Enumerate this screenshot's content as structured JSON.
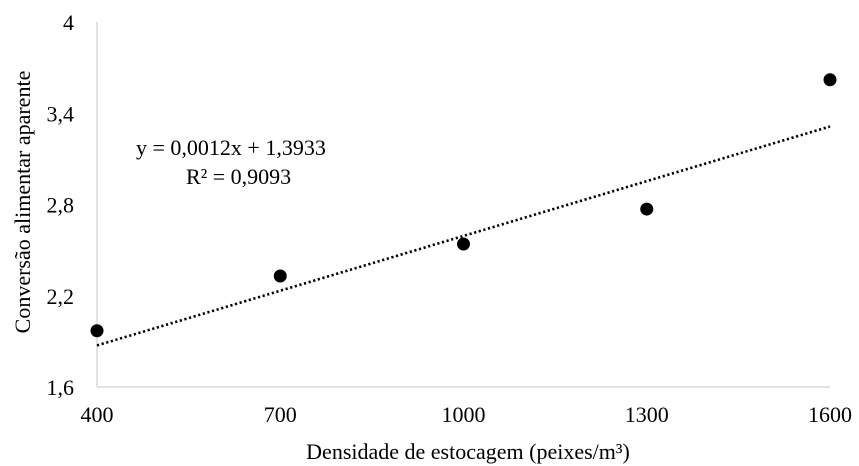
{
  "chart_data": {
    "type": "scatter",
    "xlabel": "Densidade de estocagem (peixes/m³)",
    "ylabel": "Conversão alimentar aparente",
    "xlim": [
      400,
      1600
    ],
    "ylim": [
      1.6,
      4
    ],
    "x_ticks": [
      "400",
      "700",
      "1000",
      "1300",
      "1600"
    ],
    "y_ticks": [
      "1,6",
      "2,2",
      "2,8",
      "3,4",
      "4"
    ],
    "grid": false,
    "legend": "none",
    "points": [
      {
        "x": 400,
        "y": 1.97
      },
      {
        "x": 700,
        "y": 2.33
      },
      {
        "x": 1000,
        "y": 2.54
      },
      {
        "x": 1300,
        "y": 2.77
      },
      {
        "x": 1600,
        "y": 3.62
      }
    ],
    "trendline": {
      "type": "linear",
      "slope": 0.0012,
      "intercept": 1.3933,
      "style": "dotted",
      "equation": "y = 0,0012x + 1,3933",
      "r_squared": "R² = 0,9093"
    },
    "colors": {
      "points": "#000000",
      "axes": "#d9d9d9",
      "trendline": "#000000"
    }
  }
}
